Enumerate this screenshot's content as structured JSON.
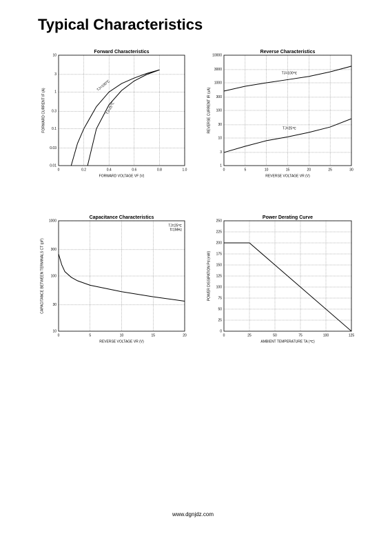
{
  "title": "Typical Characteristics",
  "footer": "www.dgnjdz.com",
  "chart_data": [
    {
      "type": "line",
      "title": "Forward    Characteristics",
      "xlabel": "FORWARD VOLTAGE   VF   (V)",
      "ylabel": "FORWARD CURRENT   IF   (A)",
      "xlim": [
        0,
        1
      ],
      "xticks": [
        0,
        0.2,
        0.4,
        0.6,
        0.8,
        {
          "value": 1,
          "label": "1.0"
        }
      ],
      "ylim": [
        0.01,
        10
      ],
      "yticks": [
        0.01,
        0.03,
        0.1,
        0.3,
        1,
        3,
        10
      ],
      "ylog": true,
      "grid": true,
      "series": [
        {
          "name": "TJ=100℃",
          "color": "#000000",
          "x": [
            0.1,
            0.15,
            0.2,
            0.3,
            0.4,
            0.5,
            0.6,
            0.7,
            0.8
          ],
          "values": [
            0.01,
            0.04,
            0.1,
            0.4,
            1,
            1.7,
            2.4,
            3.2,
            4
          ]
        },
        {
          "name": "TJ=25℃",
          "color": "#000000",
          "x": [
            0.23,
            0.3,
            0.4,
            0.5,
            0.6,
            0.7,
            0.8
          ],
          "values": [
            0.01,
            0.1,
            0.45,
            1.1,
            2,
            3,
            4
          ]
        }
      ]
    },
    {
      "type": "line",
      "title": "Reverse    Characteristics",
      "xlabel": "REVERSE VOLTAGE   VR   (V)",
      "ylabel": "REVERSE CURRENT   IR   (uA)",
      "xlim": [
        0,
        30
      ],
      "xticks": [
        0,
        5,
        10,
        15,
        20,
        25,
        30
      ],
      "ylim": [
        1,
        10000
      ],
      "yticks": [
        1,
        3,
        10,
        30,
        100,
        300,
        1000,
        3000,
        10000
      ],
      "ylog": true,
      "grid": true,
      "series": [
        {
          "name": "TJ=100℃",
          "color": "#000000",
          "x": [
            0,
            5,
            10,
            15,
            20,
            25,
            30
          ],
          "values": [
            500,
            750,
            1000,
            1300,
            1700,
            2500,
            4000
          ]
        },
        {
          "name": "TJ=25℃",
          "color": "#000000",
          "x": [
            0,
            5,
            10,
            15,
            20,
            25,
            30
          ],
          "values": [
            3,
            5,
            8,
            11,
            16,
            25,
            50
          ]
        }
      ]
    },
    {
      "type": "line",
      "title": "Capacitance Characteristics",
      "xlabel": "REVERSE VOLTAGE   VR   (V)",
      "ylabel": "CAPACITANCE BETWEEN TERMINALS  CT  (pF)",
      "annotations": [
        "TJ=25℃",
        "f=1MHz"
      ],
      "xlim": [
        0,
        20
      ],
      "xticks": [
        0,
        5,
        10,
        15,
        20
      ],
      "ylim": [
        10,
        1000
      ],
      "yticks": [
        10,
        30,
        100,
        300,
        1000
      ],
      "ylog": true,
      "grid": true,
      "x": [
        0,
        0.5,
        1,
        2,
        3,
        5,
        10,
        15,
        20
      ],
      "values": [
        250,
        160,
        120,
        95,
        82,
        68,
        52,
        42,
        35
      ],
      "color": "#000000"
    },
    {
      "type": "line",
      "title": "Power Derating Curve",
      "xlabel": "AMBIENT TEMPERATURE   TA   (℃)",
      "ylabel": "POWER DISSIPATION   Pd   (mW)",
      "xlim": [
        0,
        125
      ],
      "xticks": [
        0,
        25,
        50,
        75,
        100,
        125
      ],
      "ylim": [
        0,
        250
      ],
      "yticks": [
        0,
        25,
        50,
        75,
        100,
        125,
        150,
        175,
        200,
        225,
        250
      ],
      "ylog": false,
      "grid": true,
      "x": [
        0,
        25,
        125
      ],
      "values": [
        200,
        200,
        0
      ],
      "color": "#000000"
    }
  ]
}
